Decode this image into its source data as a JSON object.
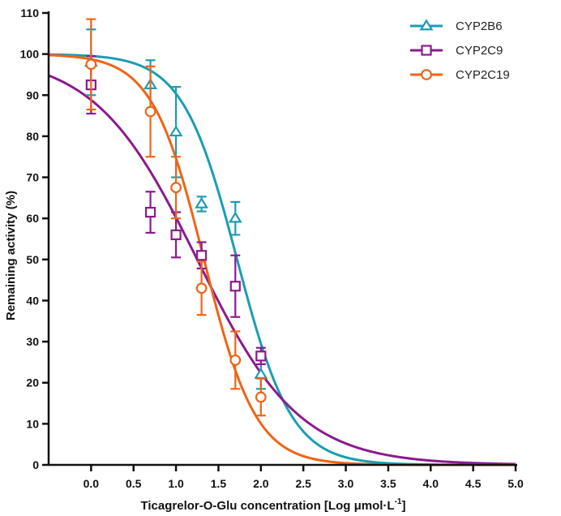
{
  "chart_data": {
    "type": "scatter",
    "title": "",
    "xlabel": "Ticagrelor-O-Glu concentration [Log μmol·L",
    "xlabel_superscript": "-1",
    "xlabel_suffix": "]",
    "ylabel": "Remaining activity (%)",
    "xlim": [
      -0.5,
      5.0
    ],
    "ylim": [
      0,
      110
    ],
    "x_ticks": [
      0.0,
      0.5,
      1.0,
      1.5,
      2.0,
      2.5,
      3.0,
      3.5,
      4.0,
      4.5,
      5.0
    ],
    "x_tick_labels": [
      "0.0",
      "0.5",
      "1.0",
      "1.5",
      "2.0",
      "2.5",
      "3.0",
      "3.5",
      "4.0",
      "4.5",
      "5.0"
    ],
    "y_ticks": [
      0,
      10,
      20,
      30,
      40,
      50,
      60,
      70,
      80,
      90,
      100,
      110
    ],
    "y_tick_labels": [
      "0",
      "10",
      "20",
      "30",
      "40",
      "50",
      "60",
      "70",
      "80",
      "90",
      "100",
      "110"
    ],
    "legend_position": "top-right",
    "grid": false,
    "series": [
      {
        "name": "CYP2B6",
        "color": "#1a9db4",
        "marker": "triangle",
        "x": [
          0.0,
          0.699,
          1.0,
          1.301,
          1.699,
          2.0
        ],
        "y": [
          98.0,
          92.5,
          81.0,
          63.5,
          60.0,
          22.0
        ],
        "err": [
          8.0,
          6.0,
          11.0,
          1.8,
          4.0,
          3.5
        ],
        "fit": {
          "top": 100,
          "bottom": 0,
          "logIC50": 1.72,
          "hill": 1.35
        }
      },
      {
        "name": "CYP2C9",
        "color": "#8b1a8e",
        "marker": "square",
        "x": [
          0.0,
          0.699,
          1.0,
          1.301,
          1.699,
          2.0
        ],
        "y": [
          92.5,
          61.5,
          56.0,
          51.0,
          43.5,
          26.5
        ],
        "err": [
          7.0,
          5.0,
          5.5,
          3.2,
          7.5,
          2.0
        ],
        "fit": {
          "top": 100,
          "bottom": 0,
          "logIC50": 1.25,
          "hill": 0.72
        }
      },
      {
        "name": "CYP2C19",
        "color": "#f06414",
        "marker": "circle",
        "x": [
          0.0,
          0.699,
          1.0,
          1.301,
          1.699,
          2.0
        ],
        "y": [
          97.5,
          86.0,
          67.5,
          43.0,
          25.5,
          16.5
        ],
        "err": [
          11.0,
          11.0,
          7.5,
          6.5,
          7.0,
          4.5
        ],
        "fit": {
          "top": 100,
          "bottom": 0,
          "logIC50": 1.33,
          "hill": 1.42
        }
      }
    ]
  }
}
